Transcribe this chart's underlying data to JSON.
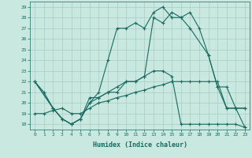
{
  "title": "",
  "xlabel": "Humidex (Indice chaleur)",
  "bg_color": "#c8e8e0",
  "grid_color": "#a8ccc8",
  "line_color": "#1a6b60",
  "xlim": [
    -0.5,
    23.5
  ],
  "ylim": [
    17.5,
    29.5
  ],
  "xticks": [
    0,
    1,
    2,
    3,
    4,
    5,
    6,
    7,
    8,
    9,
    10,
    11,
    12,
    13,
    14,
    15,
    16,
    17,
    18,
    19,
    20,
    21,
    22,
    23
  ],
  "yticks": [
    18,
    19,
    20,
    21,
    22,
    23,
    24,
    25,
    26,
    27,
    28,
    29
  ],
  "line1_x": [
    0,
    1,
    2,
    3,
    4,
    5,
    6,
    7,
    8,
    9,
    10,
    11,
    12,
    13,
    14,
    15,
    16,
    17,
    18,
    19,
    20,
    21,
    22,
    23
  ],
  "line1_y": [
    22,
    21,
    19.5,
    18.5,
    18,
    18.5,
    20,
    20.5,
    21,
    21.5,
    22,
    22,
    22.5,
    23,
    23,
    22.5,
    18,
    18,
    18,
    18,
    18,
    18,
    18,
    17.7
  ],
  "line2_x": [
    0,
    1,
    2,
    3,
    4,
    5,
    6,
    7,
    8,
    9,
    10,
    11,
    12,
    13,
    14,
    15,
    16,
    17,
    18,
    19,
    20,
    21,
    22,
    23
  ],
  "line2_y": [
    19.0,
    19.0,
    19.3,
    19.5,
    19.0,
    19.0,
    19.5,
    20.0,
    20.2,
    20.5,
    20.7,
    21.0,
    21.2,
    21.5,
    21.7,
    22.0,
    22.0,
    22.0,
    22.0,
    22.0,
    22.0,
    19.5,
    19.5,
    17.7
  ],
  "line3_x": [
    0,
    2,
    3,
    4,
    5,
    6,
    7,
    8,
    9,
    10,
    11,
    12,
    13,
    14,
    15,
    16,
    17,
    18,
    19,
    20,
    21,
    22,
    23
  ],
  "line3_y": [
    22.0,
    19.5,
    18.5,
    18.0,
    18.5,
    20.5,
    20.5,
    21.0,
    21.0,
    22.0,
    22.0,
    22.5,
    28.0,
    27.5,
    28.5,
    28.0,
    28.5,
    27.0,
    24.5,
    21.5,
    21.5,
    19.5,
    19.5
  ],
  "line4_x": [
    0,
    2,
    3,
    4,
    5,
    6,
    7,
    8,
    9,
    10,
    11,
    12,
    13,
    14,
    15,
    16,
    17,
    19,
    20,
    21,
    22,
    23
  ],
  "line4_y": [
    22.0,
    19.5,
    18.5,
    18.0,
    18.5,
    20.0,
    21.0,
    24.0,
    27.0,
    27.0,
    27.5,
    27.0,
    28.5,
    29.0,
    28.0,
    28.0,
    27.0,
    24.5,
    21.5,
    19.5,
    19.5,
    19.5
  ]
}
